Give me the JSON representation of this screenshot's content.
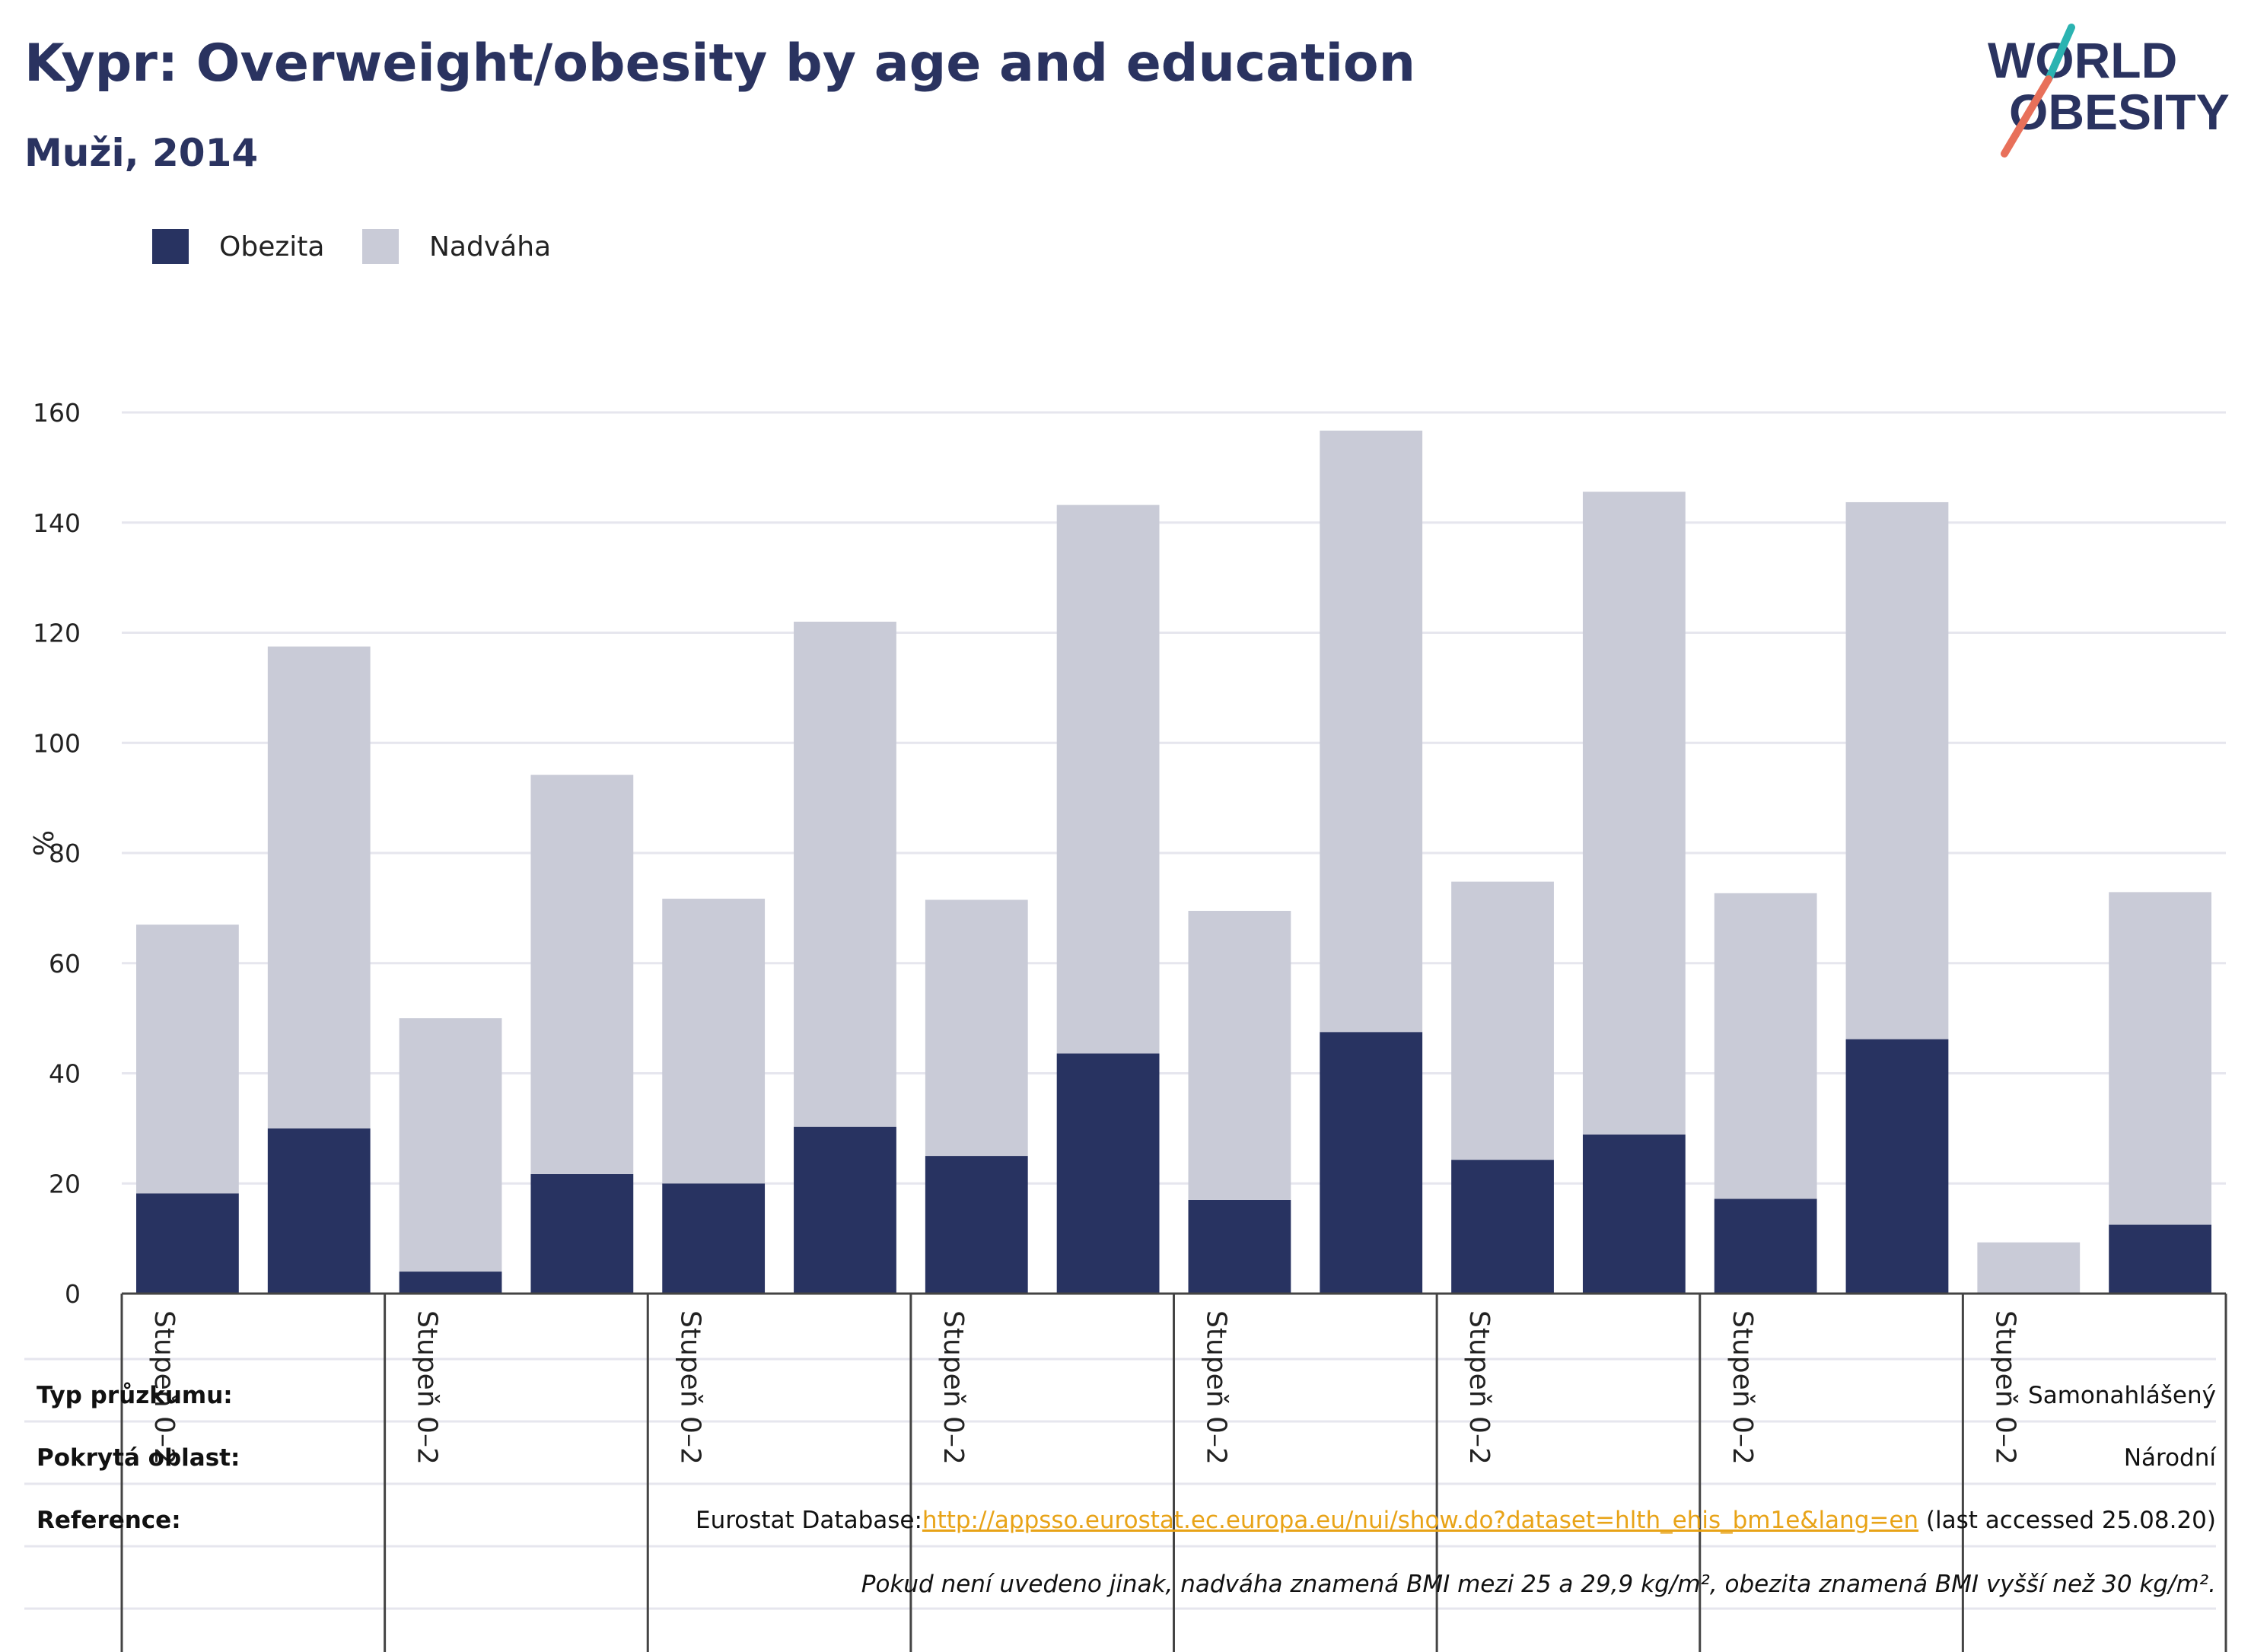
{
  "header": {
    "title": "Kypr: Overweight/obesity by age and education",
    "subtitle": "Muži, 2014"
  },
  "logo": {
    "line1": "WORLD",
    "line2": "OBESITY"
  },
  "colors": {
    "obesity": "#283361",
    "overweight": "#c9cbd7",
    "text": "#2a3360",
    "link": "#e8a317",
    "logo_teal": "#2bb3b1",
    "logo_coral": "#e8705a"
  },
  "chart_data": {
    "type": "bar",
    "stacked": true,
    "ylabel": "%",
    "ylim": [
      0,
      160
    ],
    "yticks": [
      0,
      20,
      40,
      60,
      80,
      100,
      120,
      140,
      160
    ],
    "grid": true,
    "legend_position": "top-left",
    "group_labels": [
      "Stupeň 0–2",
      "Stupeň 0–2",
      "Stupeň 0–2",
      "Stupeň 0–2",
      "Stupeň 0–2",
      "Stupeň 0–2",
      "Stupeň 0–2",
      "Stupeň 0–2"
    ],
    "series": [
      {
        "name": "Obezita",
        "values": [
          18.2,
          30.0,
          4.0,
          21.7,
          20.0,
          30.3,
          25.0,
          43.6,
          17.0,
          47.5,
          24.3,
          28.9,
          17.2,
          46.2,
          0,
          12.5
        ]
      },
      {
        "name": "Nadváha",
        "values": [
          48.8,
          87.5,
          46.0,
          72.5,
          51.7,
          91.7,
          46.5,
          99.6,
          52.5,
          109.2,
          50.5,
          116.7,
          55.5,
          97.5,
          9.3,
          60.4
        ]
      }
    ]
  },
  "info": {
    "survey_type_label": "Typ průzkumu:",
    "survey_type_value": "Samonahlášený",
    "coverage_label": "Pokrytá oblast:",
    "coverage_value": "Národní",
    "reference_label": "Reference:",
    "reference_prefix": "Eurostat Database:",
    "reference_url": "http://appsso.eurostat.ec.europa.eu/nui/show.do?dataset=hlth_ehis_bm1e&lang=en",
    "reference_suffix": " (last accessed 25.08.20)",
    "footnote": "Pokud není uvedeno jinak, nadváha znamená BMI mezi 25 a 29,9 kg/m², obezita znamená BMI vyšší než 30 kg/m²."
  }
}
